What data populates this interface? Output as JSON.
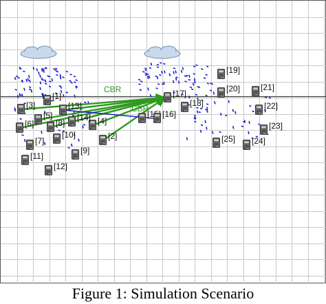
{
  "caption": "Figure 1: Simulation Scenario",
  "colors": {
    "grid": "#c8c8c8",
    "axis": "#3a3a3a",
    "node_body": "#707070",
    "node_dark": "#2e2e2e",
    "node_label": "#111111",
    "link_green": "#2e9a1e",
    "link_blue": "#1e1ec8",
    "packet": "#1a1ad6",
    "cloud": "#c9d9ec"
  },
  "icons": {
    "node": "computer-node-icon",
    "cloud": "cloud-icon"
  },
  "link_labels": [
    "CBR",
    "CBR"
  ],
  "nodes": [
    {
      "id": "1",
      "label": "[1]"
    },
    {
      "id": "2",
      "label": "[2]"
    },
    {
      "id": "3",
      "label": "[3]"
    },
    {
      "id": "4",
      "label": "[4]"
    },
    {
      "id": "5",
      "label": "[5]"
    },
    {
      "id": "6",
      "label": "[6]"
    },
    {
      "id": "7",
      "label": "[7]"
    },
    {
      "id": "8",
      "label": "[8]"
    },
    {
      "id": "9",
      "label": "[9]"
    },
    {
      "id": "10",
      "label": "[10]"
    },
    {
      "id": "11",
      "label": "[11]"
    },
    {
      "id": "12",
      "label": "[12]"
    },
    {
      "id": "13",
      "label": "[13]"
    },
    {
      "id": "14",
      "label": "[14]"
    },
    {
      "id": "15",
      "label": "[15]"
    },
    {
      "id": "16",
      "label": "[16]"
    },
    {
      "id": "17",
      "label": "[17]"
    },
    {
      "id": "18",
      "label": "[18]"
    },
    {
      "id": "19",
      "label": "[19]"
    },
    {
      "id": "20",
      "label": "[20]"
    },
    {
      "id": "21",
      "label": "[21]"
    },
    {
      "id": "22",
      "label": "[22]"
    },
    {
      "id": "23",
      "label": "[23]"
    },
    {
      "id": "24",
      "label": "[24]"
    },
    {
      "id": "25",
      "label": "[25]"
    }
  ],
  "links": [
    {
      "from": "3",
      "to": "17",
      "kind": "green"
    },
    {
      "from": "5",
      "to": "17",
      "kind": "green"
    },
    {
      "from": "8",
      "to": "17",
      "kind": "green"
    },
    {
      "from": "13",
      "to": "17",
      "kind": "green"
    },
    {
      "from": "14",
      "to": "17",
      "kind": "green"
    },
    {
      "from": "4",
      "to": "17",
      "kind": "green"
    },
    {
      "from": "2",
      "to": "17",
      "kind": "green"
    },
    {
      "from": "6",
      "to": "17",
      "kind": "green"
    },
    {
      "from": "13",
      "to": "16",
      "kind": "blue"
    }
  ]
}
